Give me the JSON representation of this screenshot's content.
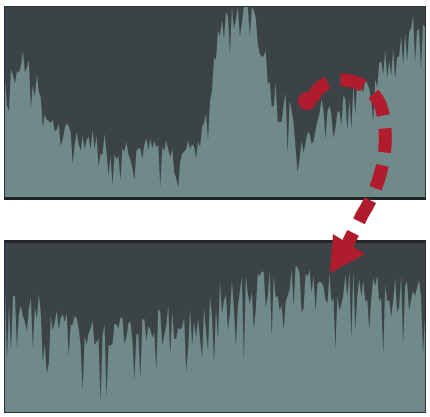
{
  "colors": {
    "background": "#3b4347",
    "waveform": "#6f8a89",
    "waveform_dark": "#566e6e",
    "track_border": "#1e2428",
    "separator": "#ffffff",
    "annotation_arrow": "#b01c2e"
  },
  "tracks": [
    {
      "name": "waveform-track-top",
      "state": "before-compression"
    },
    {
      "name": "waveform-track-bottom",
      "state": "after-compression"
    }
  ],
  "annotation": {
    "icon": "curved-dashed-arrow-icon"
  }
}
